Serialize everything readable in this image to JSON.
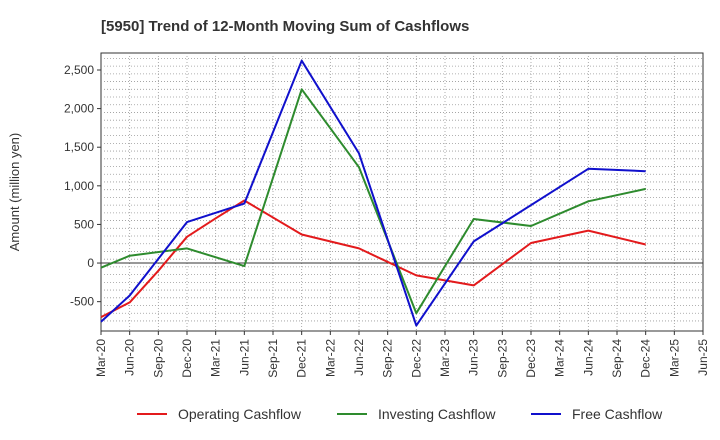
{
  "chart_data": {
    "type": "line",
    "title": "[5950]  Trend of 12-Month Moving Sum of Cashflows",
    "xlabel": "",
    "ylabel": "Amount (million yen)",
    "categories": [
      "Mar-20",
      "Jun-20",
      "Sep-20",
      "Dec-20",
      "Mar-21",
      "Jun-21",
      "Sep-21",
      "Dec-21",
      "Mar-22",
      "Jun-22",
      "Sep-22",
      "Dec-22",
      "Mar-23",
      "Jun-23",
      "Sep-23",
      "Dec-23",
      "Mar-24",
      "Jun-24",
      "Sep-24",
      "Dec-24",
      "Mar-25",
      "Jun-25"
    ],
    "ylim": [
      -880,
      2720
    ],
    "yticks": [
      -500,
      0,
      500,
      1000,
      1500,
      2000,
      2500
    ],
    "ytick_labels": [
      "-500",
      "0",
      "500",
      "1,000",
      "1,500",
      "2,000",
      "2,500"
    ],
    "grid": true,
    "legend_position": "bottom",
    "series": [
      {
        "name": "Operating Cashflow",
        "color": "#e31a1c",
        "values": [
          -700,
          -510,
          -100,
          340,
          580,
          810,
          null,
          370,
          null,
          190,
          null,
          -160,
          null,
          -290,
          null,
          260,
          null,
          420,
          null,
          240,
          null,
          null
        ]
      },
      {
        "name": "Investing Cashflow",
        "color": "#2e8b2e",
        "values": [
          -60,
          95,
          null,
          190,
          null,
          -40,
          null,
          2250,
          null,
          1240,
          null,
          -650,
          null,
          570,
          null,
          480,
          null,
          800,
          null,
          960,
          null,
          null
        ]
      },
      {
        "name": "Free Cashflow",
        "color": "#1010cc",
        "values": [
          -760,
          -420,
          null,
          530,
          null,
          770,
          null,
          2620,
          null,
          1420,
          null,
          -810,
          null,
          280,
          null,
          null,
          null,
          1220,
          null,
          1190,
          null,
          null
        ]
      }
    ]
  }
}
